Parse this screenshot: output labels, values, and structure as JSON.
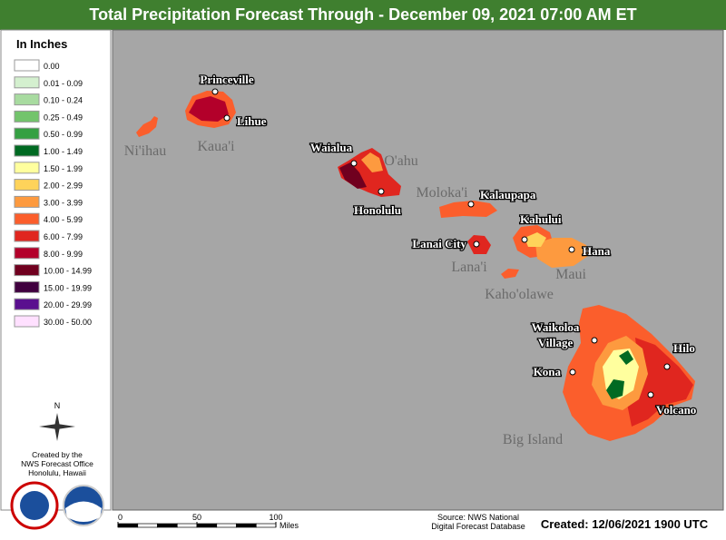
{
  "header": {
    "title": "Total Precipitation Forecast Through - December 09, 2021 07:00 AM ET"
  },
  "legend": {
    "title": "In Inches",
    "items": [
      {
        "label": "0.00",
        "color": "#ffffff"
      },
      {
        "label": "0.01 - 0.09",
        "color": "#d4f0cf"
      },
      {
        "label": "0.10 - 0.24",
        "color": "#a8dba0"
      },
      {
        "label": "0.25 - 0.49",
        "color": "#73c46c"
      },
      {
        "label": "0.50 - 0.99",
        "color": "#35a042"
      },
      {
        "label": "1.00 - 1.49",
        "color": "#006a22"
      },
      {
        "label": "1.50 - 1.99",
        "color": "#ffff9e"
      },
      {
        "label": "2.00 - 2.99",
        "color": "#fed35a"
      },
      {
        "label": "3.00 - 3.99",
        "color": "#fd9a3f"
      },
      {
        "label": "4.00 - 5.99",
        "color": "#fb5e2c"
      },
      {
        "label": "6.00 - 7.99",
        "color": "#e0261f"
      },
      {
        "label": "8.00 - 9.99",
        "color": "#b3002a"
      },
      {
        "label": "10.00 - 14.99",
        "color": "#70001f"
      },
      {
        "label": "15.00 - 19.99",
        "color": "#40003f"
      },
      {
        "label": "20.00 - 29.99",
        "color": "#5a0f8f"
      },
      {
        "label": "30.00 - 50.00",
        "color": "#ffe0ff"
      }
    ]
  },
  "compass": "N",
  "credit": [
    "Created by the",
    "NWS Forecast Office",
    "Honolulu, Hawaii"
  ],
  "islands": [
    "Ni'ihau",
    "Kaua'i",
    "O'ahu",
    "Moloka'i",
    "Lana'i",
    "Maui",
    "Kaho'olawe",
    "Big Island"
  ],
  "cities": [
    "Princeville",
    "Lihue",
    "Waialua",
    "Honolulu",
    "Kalaupapa",
    "Kahului",
    "Lanai City",
    "Hana",
    "Waikoloa",
    "Village",
    "Kona",
    "Hilo",
    "Volcano"
  ],
  "scale": {
    "ticks": [
      0,
      50,
      100
    ],
    "unit": "Miles"
  },
  "footer": {
    "source": [
      "Source: NWS National",
      "Digital Forecast Database"
    ],
    "created": "Created: 12/06/2021 1900 UTC"
  }
}
